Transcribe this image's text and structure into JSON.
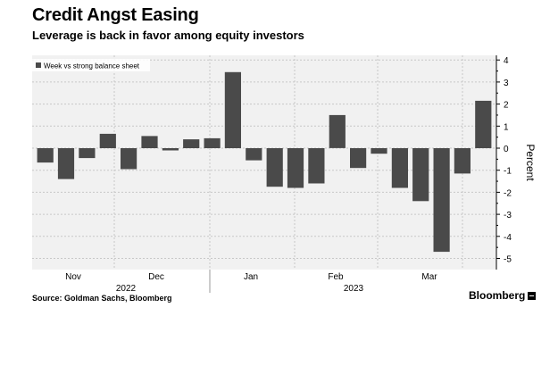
{
  "title": "Credit Angst Easing",
  "subtitle": "Leverage is back in favor among equity investors",
  "source": "Source: Goldman Sachs, Bloomberg",
  "brand": "Bloomberg",
  "colors": {
    "bar": "#4a4a4a",
    "plot_bg": "#f1f1f1",
    "grid": "#c8c8c8",
    "text": "#000000"
  },
  "chart_data": {
    "type": "bar",
    "legend": {
      "label": "Week vs strong balance sheet",
      "placement": "top-left"
    },
    "ylabel": "Percent",
    "ylim": [
      -5.2,
      4.2
    ],
    "yticks": [
      4,
      3,
      2,
      1,
      0,
      -1,
      -2,
      -3,
      -4,
      -5
    ],
    "y_axis_side": "right",
    "grid": true,
    "x_month_labels": [
      "Nov",
      "Dec",
      "Jan",
      "Feb",
      "Mar"
    ],
    "x_year_labels": [
      "2022",
      "2023"
    ],
    "values": [
      -0.65,
      -1.4,
      -0.45,
      0.65,
      -0.95,
      0.55,
      -0.1,
      0.4,
      0.45,
      3.45,
      -0.55,
      -1.75,
      -1.8,
      -1.6,
      1.5,
      -0.9,
      -0.25,
      -1.8,
      -2.4,
      -4.7,
      -1.15,
      2.15
    ]
  }
}
